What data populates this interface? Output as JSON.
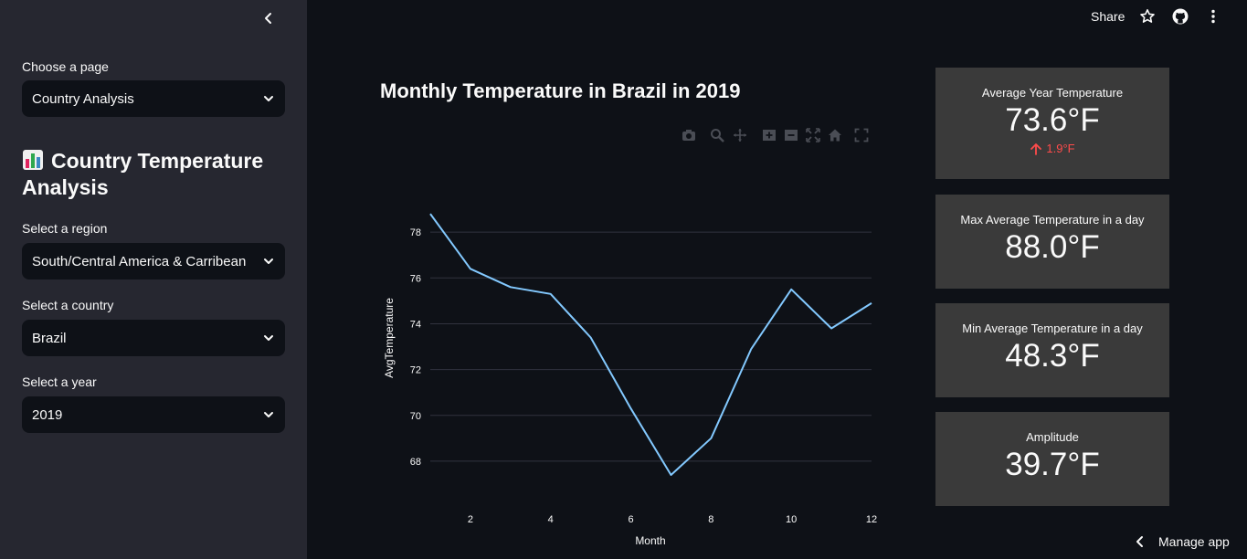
{
  "topbar": {
    "share_label": "Share",
    "icons": [
      "star-icon",
      "github-icon",
      "more-vertical-icon"
    ]
  },
  "sidebar": {
    "page_label": "Choose a page",
    "page_value": "Country Analysis",
    "heading": "Country Temperature Analysis",
    "region_label": "Select a region",
    "region_value": "South/Central America & Carribean",
    "country_label": "Select a country",
    "country_value": "Brazil",
    "year_label": "Select a year",
    "year_value": "2019"
  },
  "chart_title": "Monthly Temperature in Brazil in 2019",
  "chart_data": {
    "type": "line",
    "title": "Monthly Temperature in Brazil in 2019",
    "xlabel": "Month",
    "ylabel": "AvgTemperature",
    "x": [
      1,
      2,
      3,
      4,
      5,
      6,
      7,
      8,
      9,
      10,
      11,
      12
    ],
    "series": [
      {
        "values": [
          78.8,
          76.4,
          75.6,
          75.3,
          73.4,
          70.3,
          67.4,
          69.0,
          72.9,
          75.5,
          73.8,
          74.9
        ],
        "color": "#83c9ff"
      }
    ],
    "xticks": [
      2,
      4,
      6,
      8,
      10,
      12
    ],
    "yticks": [
      68,
      70,
      72,
      74,
      76,
      78
    ],
    "xlim": [
      1,
      12
    ],
    "ylim": [
      66.8,
      79.8
    ],
    "grid": true
  },
  "metrics": [
    {
      "label": "Average Year Temperature",
      "value": "73.6°F",
      "delta": "1.9°F"
    },
    {
      "label": "Max Average Temperature in a day",
      "value": "88.0°F"
    },
    {
      "label": "Min Average Temperature in a day",
      "value": "48.3°F"
    },
    {
      "label": "Amplitude",
      "value": "39.7°F"
    }
  ],
  "manage_app_label": "Manage app",
  "colors": {
    "sidebar": "#262730",
    "background": "#0e1117",
    "metric_bg": "#3a3a3a",
    "line": "#83c9ff",
    "delta": "#ff4b4b"
  }
}
